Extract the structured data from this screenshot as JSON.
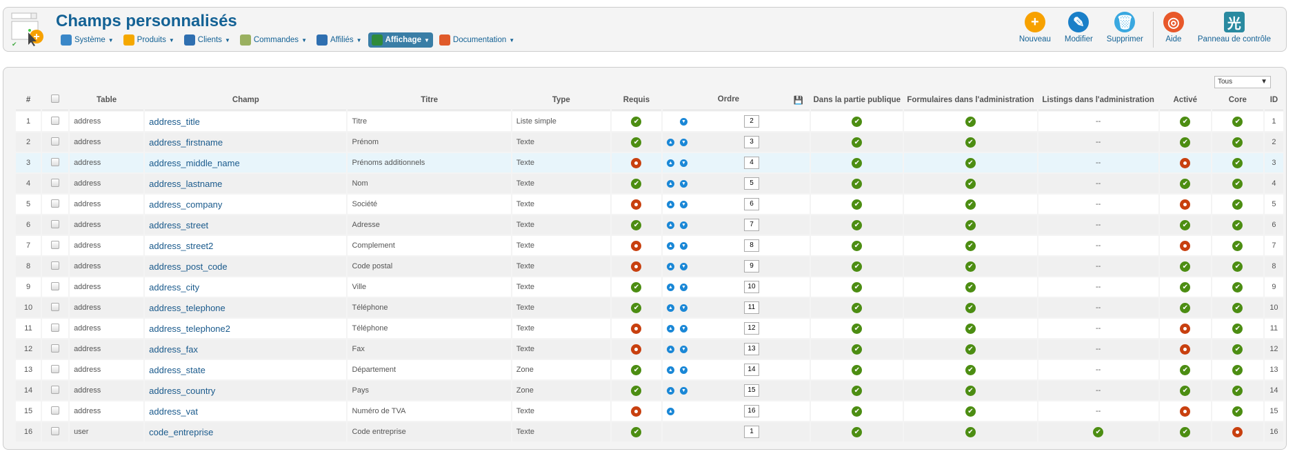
{
  "header": {
    "title": "Champs personnalisés",
    "menu": [
      {
        "label": "Système",
        "icon": "tools-icon",
        "color": "#3a87c8"
      },
      {
        "label": "Produits",
        "icon": "box-icon",
        "color": "#f5a800"
      },
      {
        "label": "Clients",
        "icon": "user-icon",
        "color": "#2f6fb0"
      },
      {
        "label": "Commandes",
        "icon": "document-icon",
        "color": "#9ab060"
      },
      {
        "label": "Affiliés",
        "icon": "affiliate-icon",
        "color": "#2f6fb0"
      },
      {
        "label": "Affichage",
        "icon": "display-icon",
        "color": "#2f8a3a",
        "active": true
      },
      {
        "label": "Documentation",
        "icon": "lifebuoy-icon",
        "color": "#e05a2a"
      }
    ],
    "toolbar": [
      {
        "label": "Nouveau",
        "icon": "plus-icon",
        "color": "#f7a100",
        "glyph": "+"
      },
      {
        "label": "Modifier",
        "icon": "pencil-icon",
        "color": "#1a7fc8",
        "glyph": "✎"
      },
      {
        "label": "Supprimer",
        "icon": "trash-icon",
        "color": "#3aa8e0",
        "glyph": "🗑"
      },
      {
        "label": "Aide",
        "icon": "lifebuoy-icon",
        "color": "#e8582a",
        "glyph": "◎"
      },
      {
        "label": "Panneau de contrôle",
        "icon": "control-panel-icon",
        "color": "#2a8aa0",
        "glyph": "光"
      }
    ]
  },
  "filter": {
    "value": "Tous"
  },
  "columns": [
    "#",
    "",
    "Table",
    "Champ",
    "Titre",
    "Type",
    "Requis",
    "Ordre",
    "Dans la partie publique",
    "Formulaires dans l'administration",
    "Listings dans l'administration",
    "Activé",
    "Core",
    "ID"
  ],
  "rows": [
    {
      "n": "1",
      "table": "address",
      "champ": "address_title",
      "titre": "Titre",
      "type": "Liste simple",
      "requis": true,
      "up": false,
      "down": true,
      "ordre": "2",
      "public": true,
      "forms": true,
      "listings": "--",
      "active": true,
      "core": true,
      "id": "1"
    },
    {
      "n": "2",
      "table": "address",
      "champ": "address_firstname",
      "titre": "Prénom",
      "type": "Texte",
      "requis": true,
      "up": true,
      "down": true,
      "ordre": "3",
      "public": true,
      "forms": true,
      "listings": "--",
      "active": true,
      "core": true,
      "id": "2"
    },
    {
      "n": "3",
      "table": "address",
      "champ": "address_middle_name",
      "titre": "Prénoms additionnels",
      "type": "Texte",
      "requis": false,
      "up": true,
      "down": true,
      "ordre": "4",
      "public": true,
      "forms": true,
      "listings": "--",
      "active": false,
      "core": true,
      "id": "3",
      "highlight": true
    },
    {
      "n": "4",
      "table": "address",
      "champ": "address_lastname",
      "titre": "Nom",
      "type": "Texte",
      "requis": true,
      "up": true,
      "down": true,
      "ordre": "5",
      "public": true,
      "forms": true,
      "listings": "--",
      "active": true,
      "core": true,
      "id": "4"
    },
    {
      "n": "5",
      "table": "address",
      "champ": "address_company",
      "titre": "Société",
      "type": "Texte",
      "requis": false,
      "up": true,
      "down": true,
      "ordre": "6",
      "public": true,
      "forms": true,
      "listings": "--",
      "active": false,
      "core": true,
      "id": "5"
    },
    {
      "n": "6",
      "table": "address",
      "champ": "address_street",
      "titre": "Adresse",
      "type": "Texte",
      "requis": true,
      "up": true,
      "down": true,
      "ordre": "7",
      "public": true,
      "forms": true,
      "listings": "--",
      "active": true,
      "core": true,
      "id": "6"
    },
    {
      "n": "7",
      "table": "address",
      "champ": "address_street2",
      "titre": "Complement",
      "type": "Texte",
      "requis": false,
      "up": true,
      "down": true,
      "ordre": "8",
      "public": true,
      "forms": true,
      "listings": "--",
      "active": false,
      "core": true,
      "id": "7"
    },
    {
      "n": "8",
      "table": "address",
      "champ": "address_post_code",
      "titre": "Code postal",
      "type": "Texte",
      "requis": false,
      "up": true,
      "down": true,
      "ordre": "9",
      "public": true,
      "forms": true,
      "listings": "--",
      "active": true,
      "core": true,
      "id": "8"
    },
    {
      "n": "9",
      "table": "address",
      "champ": "address_city",
      "titre": "Ville",
      "type": "Texte",
      "requis": true,
      "up": true,
      "down": true,
      "ordre": "10",
      "public": true,
      "forms": true,
      "listings": "--",
      "active": true,
      "core": true,
      "id": "9"
    },
    {
      "n": "10",
      "table": "address",
      "champ": "address_telephone",
      "titre": "Téléphone",
      "type": "Texte",
      "requis": true,
      "up": true,
      "down": true,
      "ordre": "11",
      "public": true,
      "forms": true,
      "listings": "--",
      "active": true,
      "core": true,
      "id": "10"
    },
    {
      "n": "11",
      "table": "address",
      "champ": "address_telephone2",
      "titre": "Téléphone",
      "type": "Texte",
      "requis": false,
      "up": true,
      "down": true,
      "ordre": "12",
      "public": true,
      "forms": true,
      "listings": "--",
      "active": false,
      "core": true,
      "id": "11"
    },
    {
      "n": "12",
      "table": "address",
      "champ": "address_fax",
      "titre": "Fax",
      "type": "Texte",
      "requis": false,
      "up": true,
      "down": true,
      "ordre": "13",
      "public": true,
      "forms": true,
      "listings": "--",
      "active": false,
      "core": true,
      "id": "12"
    },
    {
      "n": "13",
      "table": "address",
      "champ": "address_state",
      "titre": "Département",
      "type": "Zone",
      "requis": true,
      "up": true,
      "down": true,
      "ordre": "14",
      "public": true,
      "forms": true,
      "listings": "--",
      "active": true,
      "core": true,
      "id": "13"
    },
    {
      "n": "14",
      "table": "address",
      "champ": "address_country",
      "titre": "Pays",
      "type": "Zone",
      "requis": true,
      "up": true,
      "down": true,
      "ordre": "15",
      "public": true,
      "forms": true,
      "listings": "--",
      "active": true,
      "core": true,
      "id": "14"
    },
    {
      "n": "15",
      "table": "address",
      "champ": "address_vat",
      "titre": "Numéro de TVA",
      "type": "Texte",
      "requis": false,
      "up": true,
      "down": false,
      "ordre": "16",
      "public": true,
      "forms": true,
      "listings": "--",
      "active": false,
      "core": true,
      "id": "15"
    },
    {
      "n": "16",
      "table": "user",
      "champ": "code_entreprise",
      "titre": "Code entreprise",
      "type": "Texte",
      "requis": true,
      "up": false,
      "down": false,
      "ordre": "1",
      "public": true,
      "forms": true,
      "listings": true,
      "active": true,
      "core": false,
      "id": "16"
    }
  ]
}
